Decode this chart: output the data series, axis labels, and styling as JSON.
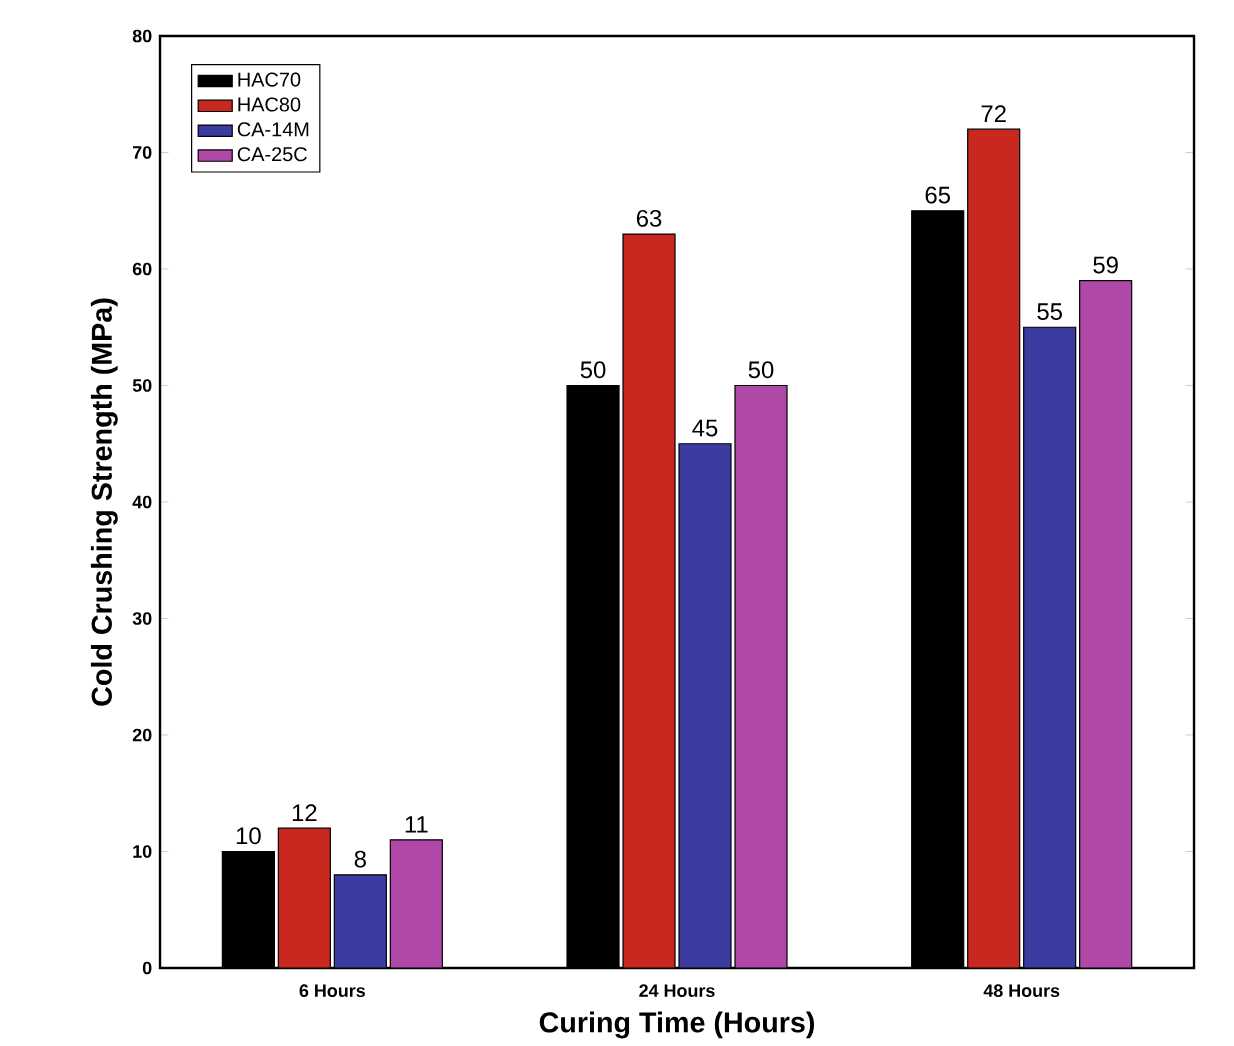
{
  "chart_data": {
    "type": "bar",
    "xlabel": "Curing Time (Hours)",
    "ylabel": "Cold Crushing Strength (MPa)",
    "categories": [
      "6 Hours",
      "24 Hours",
      "48 Hours"
    ],
    "series": [
      {
        "name": "HAC70",
        "color": "#000000",
        "values": [
          10,
          50,
          65
        ]
      },
      {
        "name": "HAC80",
        "color": "#c8281e",
        "values": [
          12,
          63,
          72
        ]
      },
      {
        "name": "CA-14M",
        "color": "#3c3ca0",
        "values": [
          8,
          45,
          55
        ]
      },
      {
        "name": "CA-25C",
        "color": "#b048a8",
        "values": [
          11,
          50,
          59
        ]
      }
    ],
    "ylim": [
      0,
      80
    ],
    "yticks": [
      0,
      10,
      20,
      30,
      40,
      50,
      60,
      70,
      80
    ],
    "data_labels": true,
    "legend": "top left"
  }
}
